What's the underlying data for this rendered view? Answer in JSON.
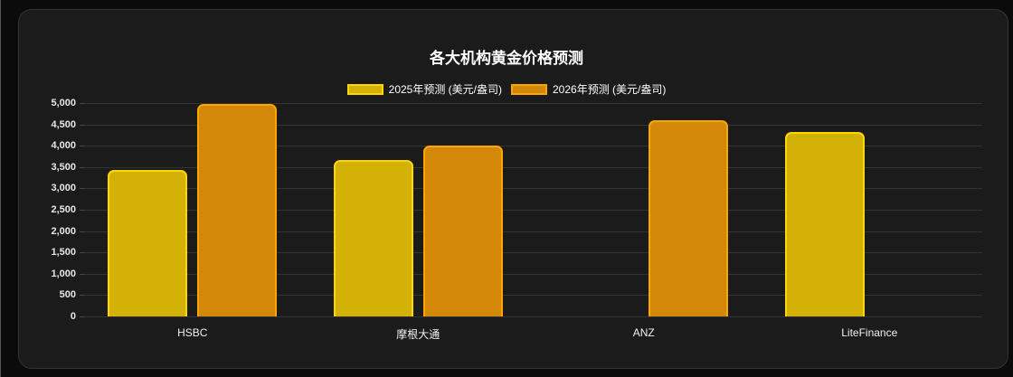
{
  "chart_data": {
    "type": "bar",
    "title": "各大机构黄金价格预测",
    "categories": [
      "HSBC",
      "摩根大通",
      "ANZ",
      "LiteFinance"
    ],
    "series": [
      {
        "name": "2025年预测 (美元/盎司)",
        "values": [
          3430,
          3675,
          null,
          4325
        ],
        "color": "#d4b106",
        "border": "#ffd700"
      },
      {
        "name": "2026年预测 (美元/盎司)",
        "values": [
          4975,
          4000,
          4600,
          null
        ],
        "color": "#d4880a",
        "border": "#ffa500"
      }
    ],
    "xlabel": "",
    "ylabel": "",
    "ylim": [
      0,
      5000
    ],
    "yticks": [
      "5,000",
      "4,500",
      "4,000",
      "3,500",
      "3,000",
      "2,500",
      "2,000",
      "1,500",
      "1,000",
      "500",
      "0"
    ],
    "legend_position": "top",
    "grid": true
  },
  "legend": {
    "s2025": "2025年预测 (美元/盎司)",
    "s2026": "2026年预测 (美元/盎司)"
  }
}
